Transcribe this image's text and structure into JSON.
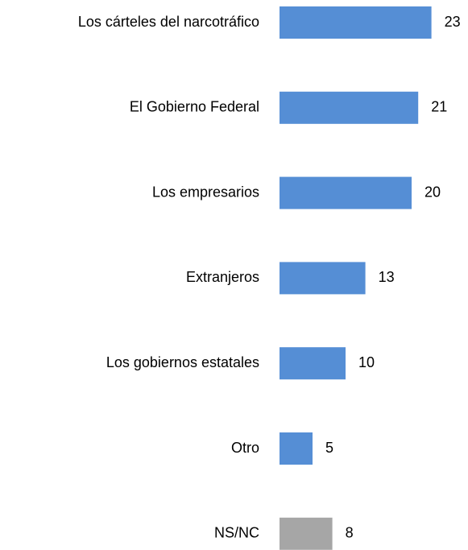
{
  "chart_data": {
    "type": "bar",
    "orientation": "horizontal",
    "categories": [
      "Los cárteles del narcotráfico",
      "El Gobierno Federal",
      "Los empresarios",
      "Extranjeros",
      "Los gobiernos estatales",
      "Otro",
      "NS/NC"
    ],
    "values": [
      23,
      21,
      20,
      13,
      10,
      5,
      8
    ],
    "colors": [
      "#558ed5",
      "#558ed5",
      "#558ed5",
      "#558ed5",
      "#558ed5",
      "#558ed5",
      "#a6a6a6"
    ]
  }
}
